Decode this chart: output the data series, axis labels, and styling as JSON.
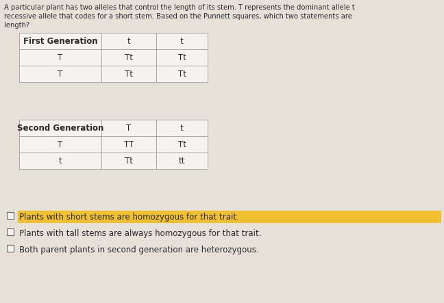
{
  "background_color": "#e5e1d8",
  "intro_text_line1": "A particular plant has two alleles that control the length of its stem. T represents the dominant allele t",
  "intro_text_line2": "recessive allele that codes for a short stem. Based on the Punnett squares, which two statements are",
  "intro_text_line3": "length?",
  "table1_title": "First Generation",
  "table1_header": [
    "",
    "t",
    "t"
  ],
  "table1_row1": [
    "T",
    "Tt",
    "Tt"
  ],
  "table1_row2": [
    "T",
    "Tt",
    "Tt"
  ],
  "table2_title": "Second Generation",
  "table2_header": [
    "",
    "T",
    "t"
  ],
  "table2_row1": [
    "T",
    "TT",
    "Tt"
  ],
  "table2_row2": [
    "t",
    "Tt",
    "tt"
  ],
  "options": [
    {
      "text": "Plants with short stems are homozygous for that trait.",
      "highlighted": true
    },
    {
      "text": "Plants with tall stems are always homozygous for that trait.",
      "highlighted": false
    },
    {
      "text": "Both parent plants in second generation are heterozygous.",
      "highlighted": false
    }
  ],
  "highlight_color": "#f0c030",
  "table_bg": "#f5f3ef",
  "table_border": "#aaaaaa",
  "text_color": "#2a2a2a",
  "font_size_intro": 7.2,
  "font_size_table": 8.5,
  "font_size_option": 8.5
}
